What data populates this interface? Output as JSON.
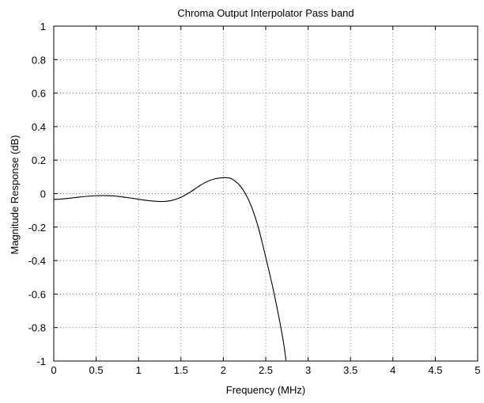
{
  "chart_data": {
    "type": "line",
    "title": "Chroma Output Interpolator Pass band",
    "xlabel": "Frequency (MHz)",
    "ylabel": "Magnitude Response (dB)",
    "xlim": [
      0,
      5
    ],
    "ylim": [
      -1,
      1
    ],
    "x_ticks": [
      0,
      0.5,
      1,
      1.5,
      2,
      2.5,
      3,
      3.5,
      4,
      4.5,
      5
    ],
    "x_tick_labels": [
      "0",
      "0.5",
      "1",
      "1.5",
      "2",
      "2.5",
      "3",
      "3.5",
      "4",
      "4.5",
      "5"
    ],
    "y_ticks": [
      -1,
      -0.8,
      -0.6,
      -0.4,
      -0.2,
      0,
      0.2,
      0.4,
      0.6,
      0.8,
      1
    ],
    "y_tick_labels": [
      "-1",
      "-0.8",
      "-0.6",
      "-0.4",
      "-0.2",
      "0",
      "0.2",
      "0.4",
      "0.6",
      "0.8",
      "1"
    ],
    "grid": true,
    "grid_style": "dotted",
    "line_color": "#000000",
    "series": [
      {
        "x": [
          0,
          0.1,
          0.2,
          0.3,
          0.4,
          0.5,
          0.6,
          0.7,
          0.8,
          0.9,
          1.0,
          1.1,
          1.2,
          1.3,
          1.4,
          1.5,
          1.6,
          1.7,
          1.8,
          1.9,
          2.0,
          2.05,
          2.1,
          2.2,
          2.3,
          2.4,
          2.5,
          2.6,
          2.7,
          2.74
        ],
        "y": [
          -0.035,
          -0.032,
          -0.027,
          -0.021,
          -0.016,
          -0.013,
          -0.012,
          -0.014,
          -0.019,
          -0.026,
          -0.034,
          -0.041,
          -0.046,
          -0.047,
          -0.04,
          -0.022,
          0.006,
          0.04,
          0.07,
          0.088,
          0.095,
          0.094,
          0.088,
          0.045,
          -0.04,
          -0.18,
          -0.38,
          -0.6,
          -0.86,
          -1.0
        ]
      }
    ]
  }
}
